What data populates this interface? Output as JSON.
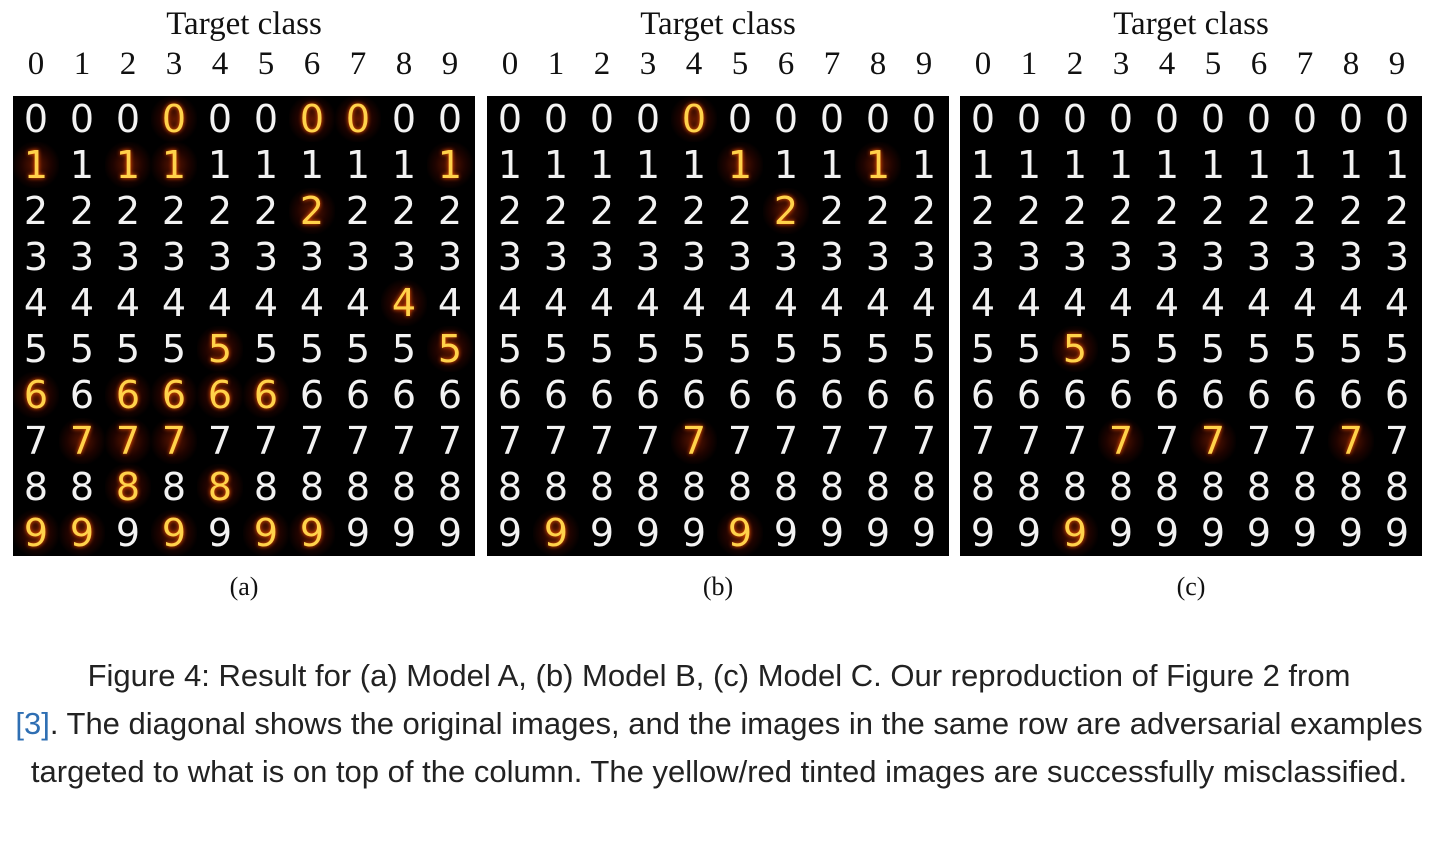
{
  "panels": [
    {
      "title": "Target class",
      "sublabel": "(a)",
      "columns": [
        "0",
        "1",
        "2",
        "3",
        "4",
        "5",
        "6",
        "7",
        "8",
        "9"
      ],
      "tinted": [
        [
          3,
          6,
          7
        ],
        [
          0,
          2,
          3,
          9
        ],
        [
          6
        ],
        [],
        [
          8
        ],
        [
          4,
          9
        ],
        [
          0,
          2,
          3,
          4,
          5
        ],
        [
          1,
          2,
          3
        ],
        [
          2,
          4
        ],
        [
          0,
          1,
          3,
          5,
          6
        ]
      ]
    },
    {
      "title": "Target class",
      "sublabel": "(b)",
      "columns": [
        "0",
        "1",
        "2",
        "3",
        "4",
        "5",
        "6",
        "7",
        "8",
        "9"
      ],
      "tinted": [
        [
          4
        ],
        [
          5,
          8
        ],
        [
          6
        ],
        [],
        [],
        [],
        [],
        [
          4
        ],
        [],
        [
          1,
          5
        ]
      ]
    },
    {
      "title": "Target class",
      "sublabel": "(c)",
      "columns": [
        "0",
        "1",
        "2",
        "3",
        "4",
        "5",
        "6",
        "7",
        "8",
        "9"
      ],
      "tinted": [
        [],
        [],
        [],
        [],
        [],
        [
          2
        ],
        [],
        [
          3,
          5,
          8
        ],
        [],
        [
          2
        ]
      ]
    }
  ],
  "caption": {
    "prefix": "Figure 4: Result for (a) Model A, (b) Model B, (c) Model C. Our reproduction of Figure 2 from",
    "ref": "[3]",
    "suffix": ". The diagonal shows the original images, and the images in the same row are adversarial examples targeted to what is on top of the column. The yellow/red tinted images are successfully misclassified."
  }
}
